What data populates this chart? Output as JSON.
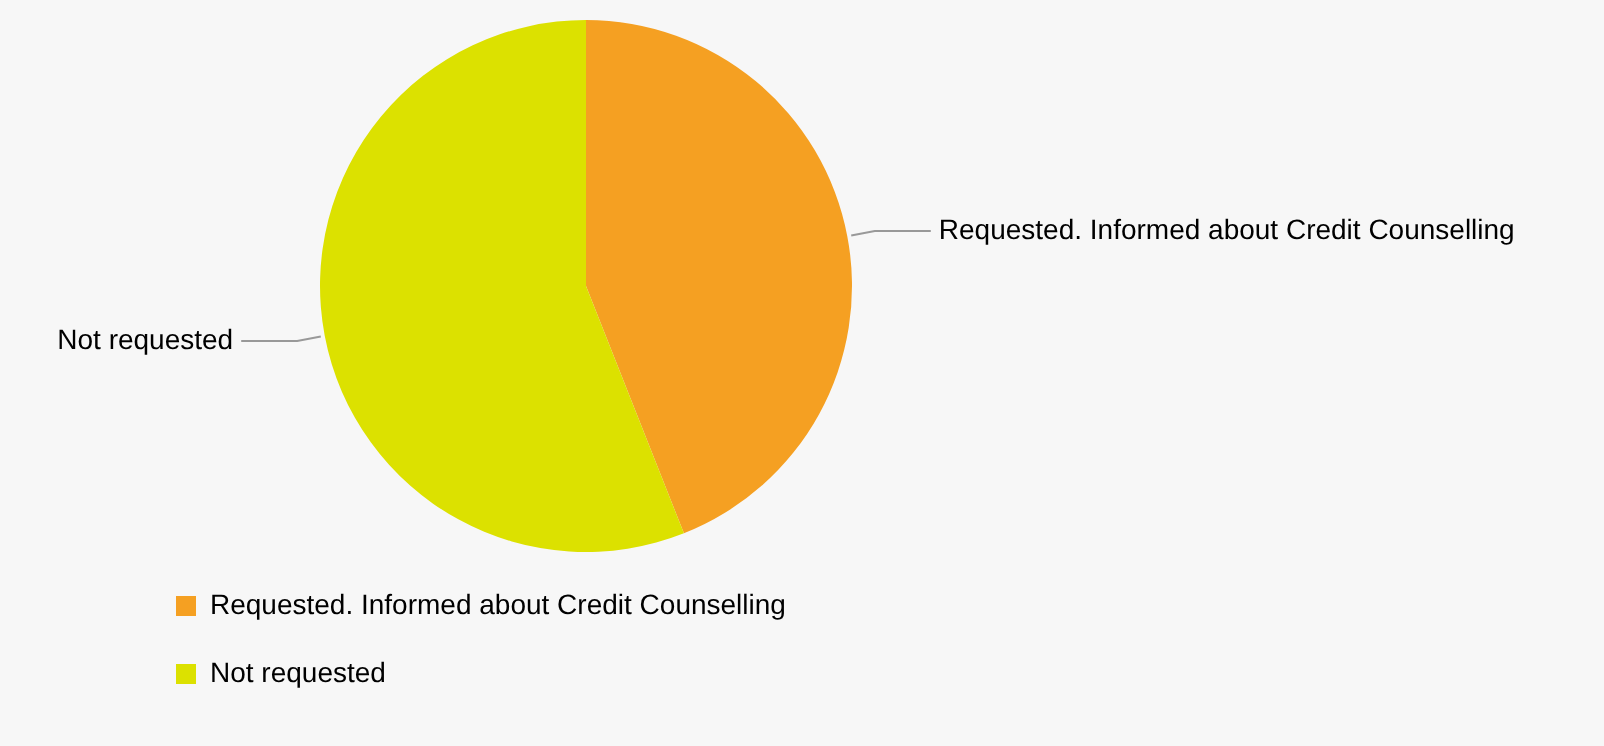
{
  "chart_data": {
    "type": "pie",
    "categories": [
      "Requested. Informed about Credit Counselling",
      "Not requested"
    ],
    "values": [
      44,
      56
    ],
    "colors": [
      "#f5a022",
      "#dce100"
    ],
    "legend": "bottom left"
  }
}
